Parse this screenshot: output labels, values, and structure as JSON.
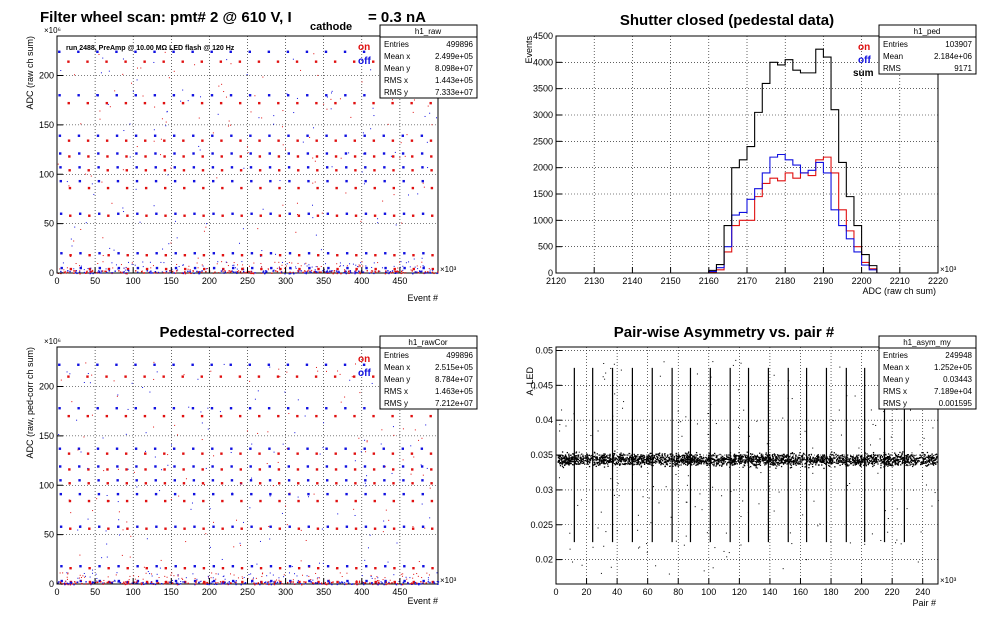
{
  "panels": [
    {
      "id": "raw",
      "title": "Filter wheel scan: pmt#   2 @   610 V, I",
      "title_sub": "cathode",
      "title_tail": "= 0.3 nA",
      "run_info": "run 2488, PreAmp @ 10.00 MΩ LED flash @  120 Hz",
      "stats": {
        "name": "h1_raw",
        "rows": [
          [
            "Entries",
            "499896"
          ],
          [
            "Mean x",
            "2.499e+05"
          ],
          [
            "Mean y",
            "8.098e+07"
          ],
          [
            "RMS x",
            "1.443e+05"
          ],
          [
            "RMS y",
            "7.333e+07"
          ]
        ]
      },
      "legend": [
        {
          "label": "on",
          "color": "#e01010"
        },
        {
          "label": "off",
          "color": "#1010e0"
        }
      ]
    },
    {
      "id": "ped",
      "title": "Shutter closed (pedestal data)",
      "stats": {
        "name": "h1_ped",
        "rows": [
          [
            "Entries",
            "103907"
          ],
          [
            "Mean",
            "2.184e+06"
          ],
          [
            "RMS",
            "9171"
          ]
        ]
      },
      "legend": [
        {
          "label": "on",
          "color": "#e01010"
        },
        {
          "label": "off",
          "color": "#1010e0"
        },
        {
          "label": "sum",
          "color": "#000000"
        }
      ]
    },
    {
      "id": "rawCor",
      "title": "Pedestal-corrected",
      "stats": {
        "name": "h1_rawCor",
        "rows": [
          [
            "Entries",
            "499896"
          ],
          [
            "Mean x",
            "2.515e+05"
          ],
          [
            "Mean y",
            "8.784e+07"
          ],
          [
            "RMS x",
            "1.463e+05"
          ],
          [
            "RMS y",
            "7.212e+07"
          ]
        ]
      },
      "legend": [
        {
          "label": "on",
          "color": "#e01010"
        },
        {
          "label": "off",
          "color": "#1010e0"
        }
      ]
    },
    {
      "id": "asym",
      "title": "Pair-wise Asymmetry vs. pair #",
      "stats": {
        "name": "h1_asym_my",
        "rows": [
          [
            "Entries",
            "249948"
          ],
          [
            "Mean x",
            "1.252e+05"
          ],
          [
            "Mean y",
            "0.03443"
          ],
          [
            "RMS x",
            "7.189e+04"
          ],
          [
            "RMS y",
            "0.001595"
          ]
        ]
      }
    }
  ],
  "chart_data": [
    {
      "type": "scatter",
      "panel": "raw",
      "xlabel": "Event #",
      "ylabel": "ADC (raw ch sum)",
      "x_exponent": "×10³",
      "y_exponent": "×10⁶",
      "xlim": [
        0,
        500
      ],
      "ylim": [
        0,
        240
      ],
      "xticks": [
        0,
        50,
        100,
        150,
        200,
        250,
        300,
        350,
        400,
        450
      ],
      "yticks": [
        0,
        50,
        100,
        150,
        200
      ],
      "grid": true,
      "colors": {
        "on": "#e01010",
        "off": "#1010e0"
      },
      "levels": [
        {
          "on": 214,
          "off": 224
        },
        {
          "on": 172,
          "off": 180
        },
        {
          "on": 134,
          "off": 139
        },
        {
          "on": 118,
          "off": 121
        },
        {
          "on": 104,
          "off": 107
        },
        {
          "on": 86,
          "off": 93
        },
        {
          "on": 58,
          "off": 60
        },
        {
          "on": 18,
          "off": 20
        },
        {
          "on": 4,
          "off": 5
        }
      ],
      "period": 25
    },
    {
      "type": "line",
      "panel": "ped",
      "xlabel": "ADC (raw ch sum)",
      "ylabel": "Events",
      "x_exponent": "×10³",
      "xlim": [
        2120,
        2220
      ],
      "ylim": [
        0,
        4500
      ],
      "xticks": [
        2120,
        2130,
        2140,
        2150,
        2160,
        2170,
        2180,
        2190,
        2200,
        2210,
        2220
      ],
      "yticks": [
        0,
        500,
        1000,
        1500,
        2000,
        2500,
        3000,
        3500,
        4000,
        4500
      ],
      "grid": true,
      "x": [
        2158,
        2160,
        2162,
        2164,
        2166,
        2168,
        2170,
        2172,
        2174,
        2176,
        2178,
        2180,
        2182,
        2184,
        2186,
        2188,
        2190,
        2192,
        2194,
        2196,
        2198,
        2200,
        2202,
        2204
      ],
      "series": [
        {
          "name": "on",
          "color": "#e01010",
          "values": [
            0,
            20,
            60,
            400,
            900,
            1000,
            1000,
            1450,
            1700,
            1800,
            1750,
            1900,
            1800,
            1900,
            1850,
            2150,
            2200,
            1900,
            1200,
            800,
            500,
            200,
            80,
            0
          ]
        },
        {
          "name": "off",
          "color": "#1010e0",
          "values": [
            0,
            30,
            100,
            500,
            1100,
            1150,
            1400,
            1600,
            1900,
            2200,
            2250,
            2150,
            2050,
            1900,
            1950,
            2100,
            1900,
            1200,
            900,
            650,
            400,
            150,
            60,
            0
          ]
        },
        {
          "name": "sum",
          "color": "#000000",
          "values": [
            0,
            50,
            160,
            900,
            2000,
            2150,
            2400,
            3050,
            3600,
            4000,
            3950,
            4050,
            3850,
            3800,
            3800,
            4250,
            4100,
            3100,
            2100,
            1450,
            900,
            350,
            140,
            0
          ]
        }
      ]
    },
    {
      "type": "scatter",
      "panel": "rawCor",
      "xlabel": "Event #",
      "ylabel": "ADC (raw, ped-corr ch sum)",
      "x_exponent": "×10³",
      "y_exponent": "×10⁶",
      "xlim": [
        0,
        500
      ],
      "ylim": [
        0,
        240
      ],
      "xticks": [
        0,
        50,
        100,
        150,
        200,
        250,
        300,
        350,
        400,
        450
      ],
      "yticks": [
        0,
        50,
        100,
        150,
        200
      ],
      "grid": true,
      "colors": {
        "on": "#e01010",
        "off": "#1010e0"
      },
      "levels": [
        {
          "on": 210,
          "off": 222
        },
        {
          "on": 170,
          "off": 178
        },
        {
          "on": 132,
          "off": 137
        },
        {
          "on": 116,
          "off": 119
        },
        {
          "on": 102,
          "off": 105
        },
        {
          "on": 84,
          "off": 91
        },
        {
          "on": 56,
          "off": 58
        },
        {
          "on": 16,
          "off": 18
        },
        {
          "on": 2,
          "off": 3
        }
      ],
      "period": 25
    },
    {
      "type": "scatter",
      "panel": "asym",
      "xlabel": "Pair #",
      "ylabel": "A_LED",
      "x_exponent": "×10³",
      "xlim": [
        0,
        250
      ],
      "ylim": [
        0.0165,
        0.0505
      ],
      "xticks": [
        0,
        20,
        40,
        60,
        80,
        100,
        120,
        140,
        160,
        180,
        200,
        220,
        240
      ],
      "yticks": [
        0.02,
        0.025,
        0.03,
        0.035,
        0.04,
        0.045,
        0.05
      ],
      "grid": true,
      "band_center": 0.0344,
      "band_halfwidth": 0.0013,
      "spike_x": [
        12,
        24,
        37,
        50,
        63,
        76,
        88,
        101,
        114,
        126,
        139,
        152,
        164,
        177,
        190,
        202,
        215,
        228
      ]
    }
  ]
}
